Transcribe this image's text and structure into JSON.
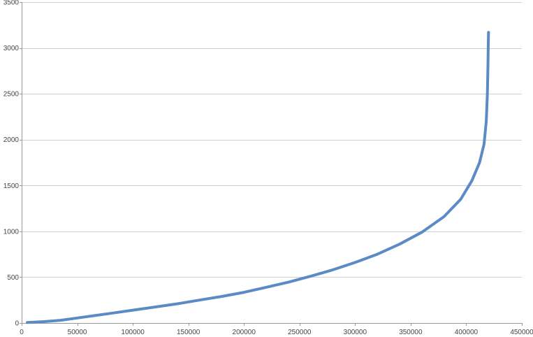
{
  "chart_data": {
    "type": "line",
    "title": "",
    "xlabel": "",
    "ylabel": "",
    "xlim": [
      0,
      450000
    ],
    "ylim": [
      0,
      3500
    ],
    "x_ticks": [
      0,
      50000,
      100000,
      150000,
      200000,
      250000,
      300000,
      350000,
      400000,
      450000
    ],
    "y_ticks": [
      0,
      500,
      1000,
      1500,
      2000,
      2500,
      3000,
      3500
    ],
    "x_tick_labels": [
      "0",
      "50000",
      "100000",
      "150000",
      "200000",
      "250000",
      "300000",
      "350000",
      "400000",
      "450000"
    ],
    "y_tick_labels": [
      "0",
      "500",
      "1000",
      "1500",
      "2000",
      "2500",
      "3000",
      "3500"
    ],
    "grid": {
      "horizontal": true,
      "vertical": false
    },
    "legend": "none",
    "series": [
      {
        "color": "#5b8ac6",
        "x": [
          5000,
          20000,
          35000,
          50000,
          65000,
          80000,
          100000,
          120000,
          140000,
          160000,
          180000,
          200000,
          220000,
          240000,
          260000,
          280000,
          300000,
          320000,
          340000,
          360000,
          380000,
          395000,
          405000,
          412000,
          416000,
          418000,
          419000,
          419500,
          419800,
          420000
        ],
        "y": [
          5,
          15,
          30,
          55,
          80,
          105,
          140,
          175,
          210,
          250,
          290,
          335,
          390,
          445,
          510,
          580,
          660,
          750,
          860,
          990,
          1160,
          1350,
          1550,
          1750,
          1950,
          2200,
          2500,
          2800,
          3000,
          3170
        ]
      }
    ]
  }
}
